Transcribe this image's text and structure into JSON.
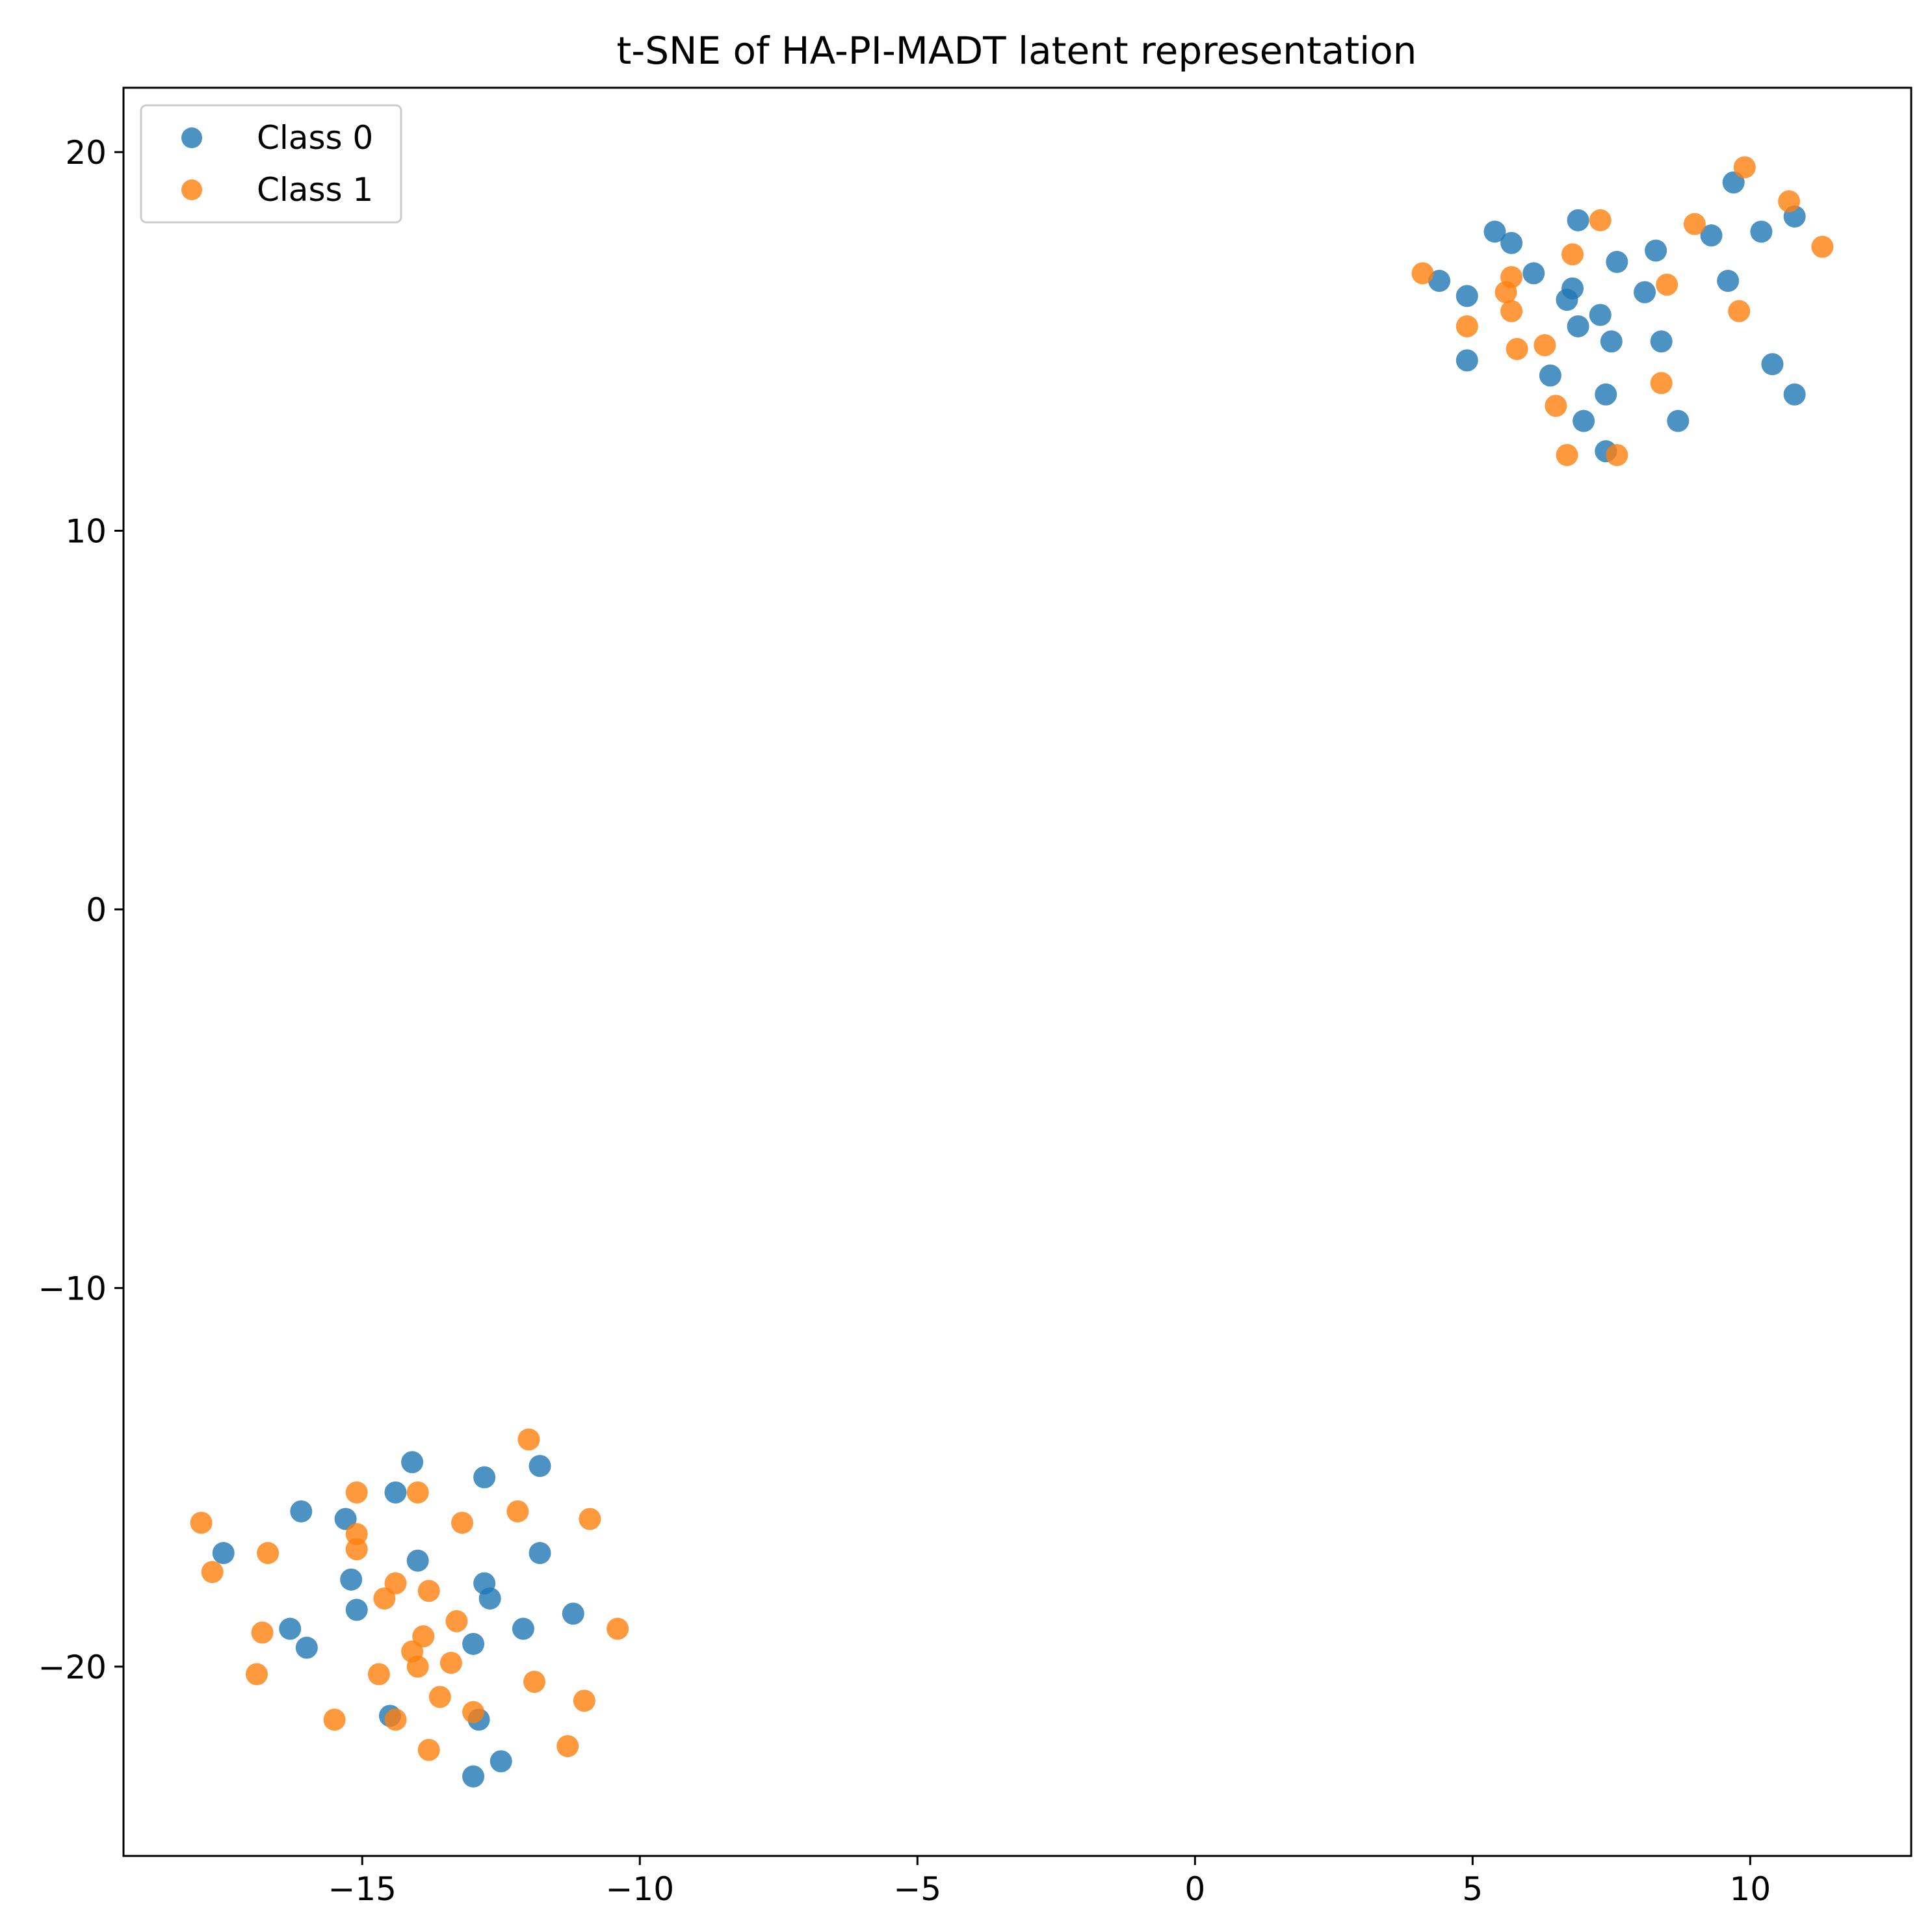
{
  "chart_data": {
    "type": "scatter",
    "title": "t-SNE of HA-PI-MADT latent representation",
    "xlabel": "",
    "ylabel": "",
    "xlim": [
      -19.3,
      12.9
    ],
    "ylim": [
      -25.0,
      21.7
    ],
    "xticks": [
      -15,
      -10,
      -5,
      0,
      5,
      10
    ],
    "yticks": [
      -20,
      -10,
      0,
      10,
      20
    ],
    "xtick_labels": [
      "−15",
      "−10",
      "−5",
      "0",
      "5",
      "10"
    ],
    "ytick_labels": [
      "−20",
      "−10",
      "0",
      "10",
      "20"
    ],
    "grid": false,
    "legend_position": "top-left",
    "series": [
      {
        "name": "Class 0",
        "color": "#1f77b4",
        "points": [
          [
            6.9,
            18.2
          ],
          [
            5.4,
            17.9
          ],
          [
            5.7,
            17.6
          ],
          [
            9.7,
            19.2
          ],
          [
            9.3,
            17.8
          ],
          [
            10.2,
            17.9
          ],
          [
            10.8,
            18.3
          ],
          [
            7.6,
            17.1
          ],
          [
            8.3,
            17.4
          ],
          [
            6.1,
            16.8
          ],
          [
            4.4,
            16.6
          ],
          [
            4.9,
            16.2
          ],
          [
            6.8,
            16.4
          ],
          [
            6.7,
            16.1
          ],
          [
            8.1,
            16.3
          ],
          [
            9.6,
            16.6
          ],
          [
            7.3,
            15.7
          ],
          [
            6.9,
            15.4
          ],
          [
            7.5,
            15.0
          ],
          [
            8.4,
            15.0
          ],
          [
            4.9,
            14.5
          ],
          [
            6.4,
            14.1
          ],
          [
            10.4,
            14.4
          ],
          [
            7.4,
            13.6
          ],
          [
            10.8,
            13.6
          ],
          [
            7.0,
            12.9
          ],
          [
            8.7,
            12.9
          ],
          [
            7.4,
            12.1
          ],
          [
            -14.1,
            -14.6
          ],
          [
            -14.4,
            -15.4
          ],
          [
            -12.8,
            -15.0
          ],
          [
            -11.8,
            -14.7
          ],
          [
            -16.1,
            -15.9
          ],
          [
            -15.3,
            -16.1
          ],
          [
            -17.5,
            -17.0
          ],
          [
            -14.0,
            -17.2
          ],
          [
            -11.8,
            -17.0
          ],
          [
            -15.2,
            -17.7
          ],
          [
            -12.8,
            -17.8
          ],
          [
            -12.7,
            -18.2
          ],
          [
            -15.1,
            -18.5
          ],
          [
            -11.2,
            -18.6
          ],
          [
            -16.3,
            -19.0
          ],
          [
            -12.1,
            -19.0
          ],
          [
            -16.0,
            -19.5
          ],
          [
            -13.0,
            -19.4
          ],
          [
            -14.5,
            -21.3
          ],
          [
            -12.9,
            -21.4
          ],
          [
            -12.5,
            -22.5
          ],
          [
            -13.0,
            -22.9
          ]
        ]
      },
      {
        "name": "Class 1",
        "color": "#ff7f0e",
        "points": [
          [
            9.9,
            19.6
          ],
          [
            10.7,
            18.7
          ],
          [
            7.3,
            18.2
          ],
          [
            9.0,
            18.1
          ],
          [
            11.3,
            17.5
          ],
          [
            6.8,
            17.3
          ],
          [
            5.7,
            16.7
          ],
          [
            4.1,
            16.8
          ],
          [
            5.6,
            16.3
          ],
          [
            8.5,
            16.5
          ],
          [
            5.7,
            15.8
          ],
          [
            9.8,
            15.8
          ],
          [
            4.9,
            15.4
          ],
          [
            6.3,
            14.9
          ],
          [
            5.8,
            14.8
          ],
          [
            8.4,
            13.9
          ],
          [
            6.5,
            13.3
          ],
          [
            6.7,
            12.0
          ],
          [
            7.6,
            12.0
          ],
          [
            -12.0,
            -14.0
          ],
          [
            -15.1,
            -15.4
          ],
          [
            -14.0,
            -15.4
          ],
          [
            -12.2,
            -15.9
          ],
          [
            -10.9,
            -16.1
          ],
          [
            -13.2,
            -16.2
          ],
          [
            -17.9,
            -16.2
          ],
          [
            -15.1,
            -16.5
          ],
          [
            -15.1,
            -16.9
          ],
          [
            -16.7,
            -17.0
          ],
          [
            -17.7,
            -17.5
          ],
          [
            -14.4,
            -17.8
          ],
          [
            -13.8,
            -18.0
          ],
          [
            -14.6,
            -18.2
          ],
          [
            -13.3,
            -18.8
          ],
          [
            -10.4,
            -19.0
          ],
          [
            -16.8,
            -19.1
          ],
          [
            -13.9,
            -19.2
          ],
          [
            -14.1,
            -19.6
          ],
          [
            -13.4,
            -19.9
          ],
          [
            -14.0,
            -20.0
          ],
          [
            -16.9,
            -20.2
          ],
          [
            -14.7,
            -20.2
          ],
          [
            -11.9,
            -20.4
          ],
          [
            -13.6,
            -20.8
          ],
          [
            -11.0,
            -20.9
          ],
          [
            -13.0,
            -21.2
          ],
          [
            -15.5,
            -21.4
          ],
          [
            -14.4,
            -21.4
          ],
          [
            -11.3,
            -22.1
          ],
          [
            -13.8,
            -22.2
          ]
        ]
      }
    ]
  }
}
